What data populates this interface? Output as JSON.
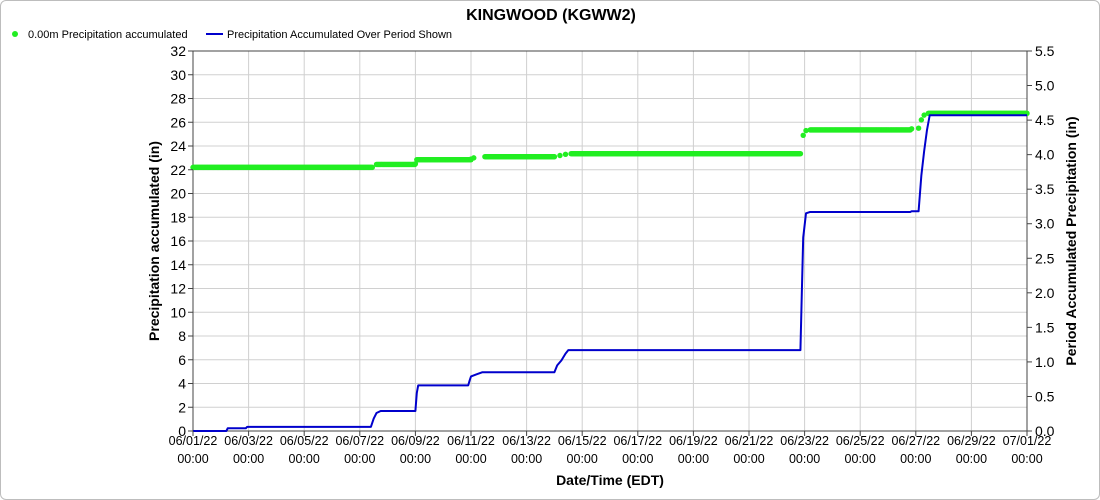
{
  "chart_data": {
    "type": "line",
    "title": "KINGWOOD (KGWW2)",
    "xlabel": "Date/Time (EDT)",
    "ylabel": "Precipitation accumulated (in)",
    "y2label": "Period Accumulated Precipitation (in)",
    "ylim": [
      0,
      32
    ],
    "y2lim": [
      0,
      5.5
    ],
    "yticks": [
      0,
      2,
      4,
      6,
      8,
      10,
      12,
      14,
      16,
      18,
      20,
      22,
      24,
      26,
      28,
      30,
      32
    ],
    "y2ticks": [
      "0.0",
      "0.5",
      "1.0",
      "1.5",
      "2.0",
      "2.5",
      "3.0",
      "3.5",
      "4.0",
      "4.5",
      "5.0",
      "5.5"
    ],
    "xlim_days": [
      0,
      30
    ],
    "xticks": [
      {
        "date": "06/01/22",
        "time": "00:00",
        "day": 0
      },
      {
        "date": "06/03/22",
        "time": "00:00",
        "day": 2
      },
      {
        "date": "06/05/22",
        "time": "00:00",
        "day": 4
      },
      {
        "date": "06/07/22",
        "time": "00:00",
        "day": 6
      },
      {
        "date": "06/09/22",
        "time": "00:00",
        "day": 8
      },
      {
        "date": "06/11/22",
        "time": "00:00",
        "day": 10
      },
      {
        "date": "06/13/22",
        "time": "00:00",
        "day": 12
      },
      {
        "date": "06/15/22",
        "time": "00:00",
        "day": 14
      },
      {
        "date": "06/17/22",
        "time": "00:00",
        "day": 16
      },
      {
        "date": "06/19/22",
        "time": "00:00",
        "day": 18
      },
      {
        "date": "06/21/22",
        "time": "00:00",
        "day": 20
      },
      {
        "date": "06/23/22",
        "time": "00:00",
        "day": 22
      },
      {
        "date": "06/25/22",
        "time": "00:00",
        "day": 24
      },
      {
        "date": "06/27/22",
        "time": "00:00",
        "day": 26
      },
      {
        "date": "06/29/22",
        "time": "00:00",
        "day": 28
      },
      {
        "date": "07/01/22",
        "time": "00:00",
        "day": 30
      }
    ],
    "grid": true,
    "legend_position": "top-left",
    "series": [
      {
        "name": "0.00m Precipitation accumulated",
        "axis": "left",
        "style": "markers",
        "color": "#22ee22",
        "points": [
          [
            0,
            22.2
          ],
          [
            6.45,
            22.2
          ],
          [
            6.6,
            22.45
          ],
          [
            8.0,
            22.5
          ],
          [
            8.05,
            22.85
          ],
          [
            10.0,
            22.9
          ],
          [
            10.1,
            23.0
          ],
          [
            10.5,
            23.1
          ],
          [
            13.0,
            23.1
          ],
          [
            13.2,
            23.2
          ],
          [
            13.4,
            23.3
          ],
          [
            13.6,
            23.35
          ],
          [
            21.85,
            23.35
          ],
          [
            21.95,
            24.9
          ],
          [
            22.05,
            25.3
          ],
          [
            22.2,
            25.35
          ],
          [
            25.8,
            25.35
          ],
          [
            25.85,
            25.45
          ],
          [
            26.1,
            25.5
          ],
          [
            26.2,
            26.2
          ],
          [
            26.3,
            26.6
          ],
          [
            26.45,
            26.75
          ],
          [
            30,
            26.75
          ]
        ]
      },
      {
        "name": "Precipitation Accumulated Over Period Shown",
        "axis": "right",
        "style": "line",
        "color": "#0000cc",
        "points": [
          [
            0,
            0.0
          ],
          [
            1.2,
            0.0
          ],
          [
            1.25,
            0.04
          ],
          [
            1.9,
            0.04
          ],
          [
            1.95,
            0.06
          ],
          [
            6.4,
            0.06
          ],
          [
            6.5,
            0.18
          ],
          [
            6.6,
            0.26
          ],
          [
            6.75,
            0.29
          ],
          [
            8.0,
            0.29
          ],
          [
            8.05,
            0.55
          ],
          [
            8.1,
            0.66
          ],
          [
            9.9,
            0.66
          ],
          [
            9.95,
            0.73
          ],
          [
            10.0,
            0.79
          ],
          [
            10.2,
            0.82
          ],
          [
            10.4,
            0.85
          ],
          [
            13.0,
            0.85
          ],
          [
            13.1,
            0.95
          ],
          [
            13.25,
            1.02
          ],
          [
            13.4,
            1.12
          ],
          [
            13.5,
            1.17
          ],
          [
            21.85,
            1.17
          ],
          [
            21.9,
            2.0
          ],
          [
            21.95,
            2.8
          ],
          [
            22.05,
            3.15
          ],
          [
            22.2,
            3.17
          ],
          [
            25.8,
            3.17
          ],
          [
            25.85,
            3.18
          ],
          [
            26.1,
            3.18
          ],
          [
            26.2,
            3.7
          ],
          [
            26.3,
            4.05
          ],
          [
            26.4,
            4.35
          ],
          [
            26.5,
            4.57
          ],
          [
            30,
            4.57
          ]
        ]
      }
    ]
  }
}
